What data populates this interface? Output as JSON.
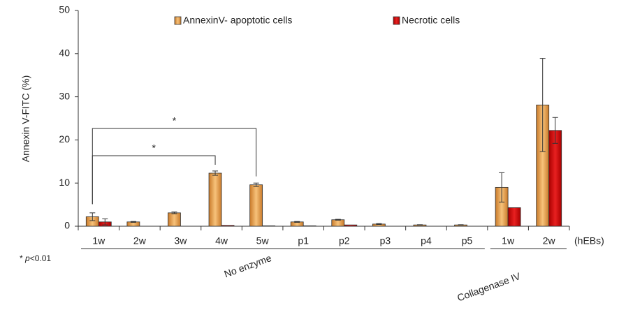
{
  "chart_data": {
    "type": "bar",
    "y_label": "Annexin V-FITC (%)",
    "x_unit": "(hEBs)",
    "categories": [
      "1w",
      "2w",
      "3w",
      "4w",
      "5w",
      "p1",
      "p2",
      "p3",
      "p4",
      "p5",
      "1w",
      "2w"
    ],
    "series": [
      {
        "name": "AnnexinV- apoptotic cells",
        "color": "#e89a45",
        "values": [
          2.2,
          1.0,
          3.1,
          12.3,
          9.6,
          1.0,
          1.5,
          0.5,
          0.3,
          0.3,
          9.0,
          28.1
        ],
        "errors": [
          0.9,
          0.1,
          0.2,
          0.5,
          0.4,
          0.1,
          0.1,
          0.1,
          0.05,
          0.05,
          3.4,
          10.8
        ]
      },
      {
        "name": "Necrotic cells",
        "color": "#d41515",
        "values": [
          1.0,
          0,
          0,
          0.2,
          0.1,
          0.1,
          0.3,
          0,
          0,
          0,
          4.3,
          22.2
        ],
        "errors": [
          0.7,
          null,
          null,
          null,
          null,
          null,
          null,
          null,
          null,
          null,
          null,
          3.0
        ]
      }
    ],
    "ylim": [
      0,
      50
    ],
    "yticks": [
      0,
      10,
      20,
      30,
      40,
      50
    ],
    "groups": [
      "No enzyme",
      "Collagenase IV"
    ],
    "brackets": [
      "*",
      "*"
    ],
    "note": {
      "marker": "*",
      "symbol": "p",
      "text": "<0.01"
    }
  }
}
